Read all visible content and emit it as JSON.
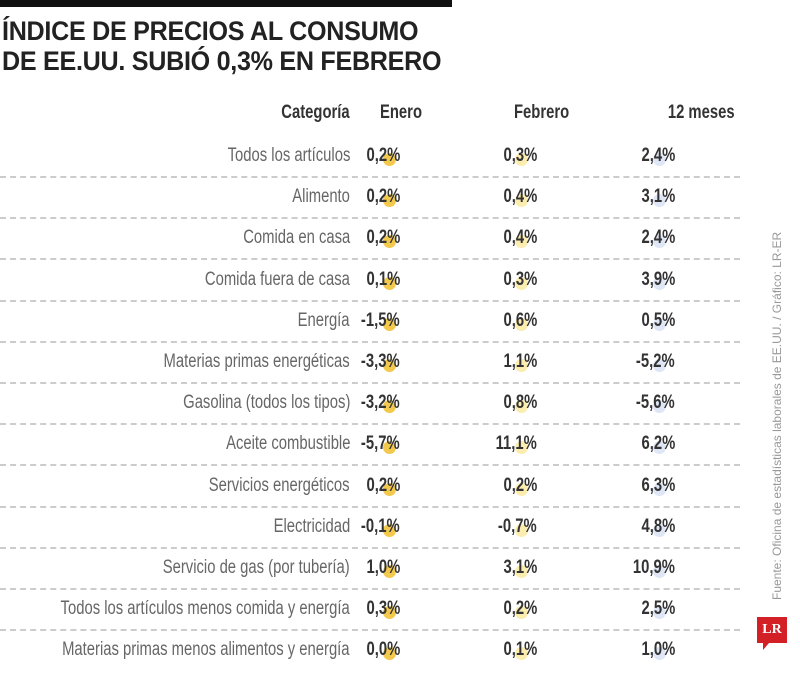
{
  "chart_data": {
    "type": "table",
    "title": "ÍNDICE DE PRECIOS AL CONSUMO DE EE.UU. SUBIÓ 0,3% EN FEBRERO",
    "title_lines": [
      "ÍNDICE DE PRECIOS AL CONSUMO",
      "DE EE.UU. SUBIÓ 0,3% EN FEBRERO"
    ],
    "columns": [
      "Categoría",
      "Enero",
      "Febrero",
      "12 meses"
    ],
    "colors": {
      "enero": "#f2c94c",
      "febrero": "#fbecb0",
      "doce_meses": "#dfe6f6"
    },
    "rows": [
      {
        "category": "Todos los artículos",
        "enero": "0,2%",
        "febrero": "0,3%",
        "doce_meses": "2,4%"
      },
      {
        "category": "Alimento",
        "enero": "0,2%",
        "febrero": "0,4%",
        "doce_meses": "3,1%"
      },
      {
        "category": "Comida en casa",
        "enero": "0,2%",
        "febrero": "0,4%",
        "doce_meses": "2,4%"
      },
      {
        "category": "Comida fuera de casa",
        "enero": "0,1%",
        "febrero": "0,3%",
        "doce_meses": "3,9%"
      },
      {
        "category": "Energía",
        "enero": "-1,5%",
        "febrero": "0,6%",
        "doce_meses": "0,5%"
      },
      {
        "category": "Materias primas energéticas",
        "enero": "-3,3%",
        "febrero": "1,1%",
        "doce_meses": "-5,2%"
      },
      {
        "category": "Gasolina (todos los tipos)",
        "enero": "-3,2%",
        "febrero": "0,8%",
        "doce_meses": "-5,6%"
      },
      {
        "category": "Aceite combustible",
        "enero": "-5,7%",
        "febrero": "11,1%",
        "doce_meses": "6,2%"
      },
      {
        "category": "Servicios energéticos",
        "enero": "0,2%",
        "febrero": "0,2%",
        "doce_meses": "6,3%"
      },
      {
        "category": "Electricidad",
        "enero": "-0,1%",
        "febrero": "-0,7%",
        "doce_meses": "4,8%"
      },
      {
        "category": "Servicio de gas (por tubería)",
        "enero": "1,0%",
        "febrero": "3,1%",
        "doce_meses": "10,9%"
      },
      {
        "category": "Todos los artículos menos comida y energía",
        "enero": "0,3%",
        "febrero": "0,2%",
        "doce_meses": "2,5%"
      },
      {
        "category": "Materias primas menos alimentos y energía",
        "enero": "0,0%",
        "febrero": "0,1%",
        "doce_meses": "1,0%"
      }
    ],
    "source": "Fuente: Oficina de estadísticas laborales de EE.UU. / Gráfico: LR-ER",
    "logo": "LR"
  }
}
